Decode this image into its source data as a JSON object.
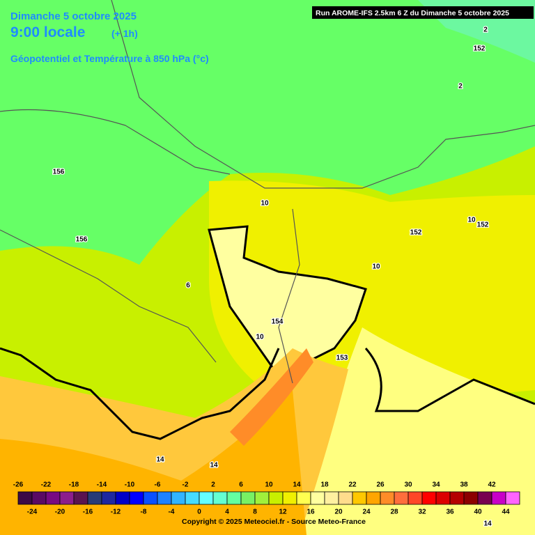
{
  "header": {
    "date": "Dimanche 5 octobre 2025",
    "time": "9:00 locale",
    "offset": "(+ 1h)",
    "subtitle": "Géopotentiel et Température à 850 hPa (°c)"
  },
  "run_info": "Run AROME-IFS 2.5km 6 Z du Dimanche 5 octobre 2025",
  "contour_labels": [
    2,
    152,
    2,
    156,
    156,
    10,
    152,
    10,
    152,
    10,
    6,
    154,
    10,
    153,
    14,
    14,
    14
  ],
  "legend": {
    "ticks": [
      -26,
      -24,
      -22,
      -20,
      -18,
      -16,
      -14,
      -12,
      -10,
      -8,
      -6,
      -4,
      -2,
      0,
      2,
      4,
      6,
      8,
      10,
      12,
      14,
      16,
      18,
      20,
      22,
      24,
      26,
      28,
      30,
      32,
      34,
      36,
      38,
      40,
      42,
      44
    ],
    "colors": [
      "#3c0a46",
      "#5a0a64",
      "#780a82",
      "#8c1e8c",
      "#5a1450",
      "#283c78",
      "#1e28a0",
      "#0000c8",
      "#0000ff",
      "#0a50ff",
      "#1e82ff",
      "#32b4ff",
      "#46dcff",
      "#64ffff",
      "#64ffd2",
      "#64ffa0",
      "#78f064",
      "#a0f03c",
      "#c8f000",
      "#f0f000",
      "#ffff50",
      "#ffffa0",
      "#fff0a0",
      "#ffdc8c",
      "#ffc800",
      "#ffa500",
      "#ff8c28",
      "#ff6e3c",
      "#ff4628",
      "#ff0000",
      "#dc0000",
      "#b40000",
      "#8c0000",
      "#780050",
      "#c800c8",
      "#ff64ff"
    ]
  },
  "copyright": "Copyright © 2025 Meteociel.fr - Source Meteo-France"
}
